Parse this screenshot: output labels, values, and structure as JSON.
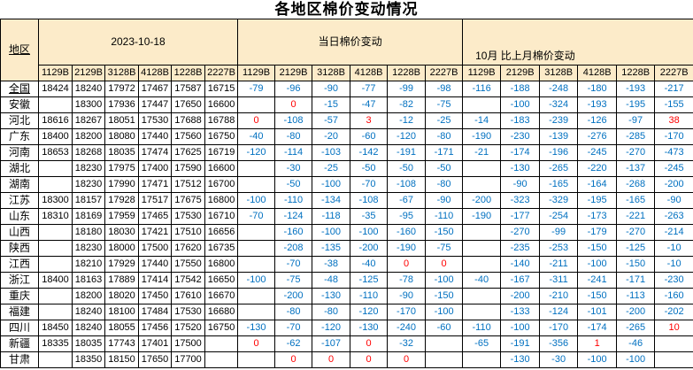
{
  "title": "各地区棉价变动情况",
  "colors": {
    "header_bg": "#FCEBC9",
    "negative_value": "#0070C0",
    "positive_value": "#FF0000",
    "border": "#000000"
  },
  "table": {
    "region_header": "地区",
    "group_headers": [
      "2023-10-18",
      "当日棉价变动",
      "10月 比上月棉价变动"
    ],
    "grade_headers": [
      "1129B",
      "2129B",
      "3128B",
      "4128B",
      "1228B",
      "2227B"
    ],
    "rows": [
      {
        "region": "全国",
        "underlined": true,
        "prices": [
          "18424",
          "18240",
          "17972",
          "17467",
          "17587",
          "16715"
        ],
        "daily": [
          "-79",
          "-96",
          "-90",
          "-77",
          "-99",
          "-98"
        ],
        "monthly": [
          "-116",
          "-188",
          "-248",
          "-180",
          "-193",
          "-217"
        ]
      },
      {
        "region": "安徽",
        "underlined": false,
        "prices": [
          "",
          "18300",
          "17936",
          "17447",
          "17650",
          "16600"
        ],
        "daily": [
          "",
          "0",
          "-15",
          "-47",
          "-82",
          "-75"
        ],
        "monthly": [
          "",
          "-100",
          "-324",
          "-193",
          "-195",
          "-155"
        ]
      },
      {
        "region": "河北",
        "underlined": false,
        "prices": [
          "18616",
          "18267",
          "18051",
          "17530",
          "17688",
          "16788"
        ],
        "daily": [
          "0",
          "-108",
          "-57",
          "3",
          "-12",
          "-25"
        ],
        "monthly": [
          "-14",
          "-183",
          "-239",
          "-126",
          "-97",
          "38"
        ]
      },
      {
        "region": "广东",
        "underlined": false,
        "prices": [
          "18400",
          "18200",
          "18080",
          "17440",
          "17560",
          "16750"
        ],
        "daily": [
          "-40",
          "-80",
          "-20",
          "-60",
          "-120",
          "-80"
        ],
        "monthly": [
          "-190",
          "-230",
          "-139",
          "-276",
          "-285",
          "-170"
        ]
      },
      {
        "region": "河南",
        "underlined": false,
        "prices": [
          "18653",
          "18268",
          "18035",
          "17474",
          "17625",
          "16719"
        ],
        "daily": [
          "-120",
          "-114",
          "-103",
          "-142",
          "-191",
          "-171"
        ],
        "monthly": [
          "-21",
          "-174",
          "-196",
          "-245",
          "-270",
          "-473"
        ]
      },
      {
        "region": "湖北",
        "underlined": false,
        "prices": [
          "",
          "18230",
          "17975",
          "17400",
          "17590",
          "16600"
        ],
        "daily": [
          "",
          "-30",
          "-25",
          "-50",
          "-50",
          "-50"
        ],
        "monthly": [
          "",
          "-130",
          "-265",
          "-220",
          "-137",
          "-245"
        ]
      },
      {
        "region": "湖南",
        "underlined": false,
        "prices": [
          "",
          "18230",
          "17990",
          "17471",
          "17512",
          "16700"
        ],
        "daily": [
          "",
          "-50",
          "-100",
          "-70",
          "-108",
          "-80"
        ],
        "monthly": [
          "",
          "-90",
          "-165",
          "-164",
          "-268",
          "-200"
        ]
      },
      {
        "region": "江苏",
        "underlined": false,
        "prices": [
          "18300",
          "18157",
          "17928",
          "17517",
          "17675",
          "16800"
        ],
        "daily": [
          "-100",
          "-110",
          "-134",
          "-108",
          "-67",
          "-90"
        ],
        "monthly": [
          "-200",
          "-323",
          "-329",
          "-195",
          "-165",
          "-90"
        ]
      },
      {
        "region": "山东",
        "underlined": false,
        "prices": [
          "18310",
          "18169",
          "17959",
          "17465",
          "17530",
          "16710"
        ],
        "daily": [
          "-70",
          "-124",
          "-118",
          "-35",
          "-95",
          "-110"
        ],
        "monthly": [
          "-190",
          "-177",
          "-254",
          "-173",
          "-221",
          "-263"
        ]
      },
      {
        "region": "山西",
        "underlined": false,
        "prices": [
          "",
          "18180",
          "18030",
          "17421",
          "17510",
          "16656"
        ],
        "daily": [
          "",
          "-160",
          "-100",
          "-100",
          "-160",
          "-150"
        ],
        "monthly": [
          "",
          "-270",
          "-99",
          "-179",
          "-270",
          "-214"
        ]
      },
      {
        "region": "陕西",
        "underlined": false,
        "prices": [
          "",
          "18230",
          "18000",
          "17500",
          "17620",
          "16735"
        ],
        "daily": [
          "",
          "-208",
          "-135",
          "-200",
          "-190",
          "-75"
        ],
        "monthly": [
          "",
          "-235",
          "-253",
          "-150",
          "-125",
          "-10"
        ]
      },
      {
        "region": "江西",
        "underlined": false,
        "prices": [
          "",
          "18210",
          "17929",
          "17440",
          "17550",
          "16800"
        ],
        "daily": [
          "",
          "-70",
          "-38",
          "-40",
          "0",
          "0"
        ],
        "monthly": [
          "",
          "-140",
          "-211",
          "-100",
          "-150",
          "-10"
        ]
      },
      {
        "region": "浙江",
        "underlined": false,
        "prices": [
          "18400",
          "18163",
          "17889",
          "17414",
          "17542",
          "16650"
        ],
        "daily": [
          "-100",
          "-75",
          "-48",
          "-125",
          "-78",
          "-100"
        ],
        "monthly": [
          "-40",
          "-167",
          "-311",
          "-241",
          "-171",
          "-230"
        ]
      },
      {
        "region": "重庆",
        "underlined": false,
        "prices": [
          "",
          "18200",
          "18020",
          "17450",
          "17610",
          "16670"
        ],
        "daily": [
          "",
          "-200",
          "-130",
          "-110",
          "-90",
          "-150"
        ],
        "monthly": [
          "",
          "-200",
          "-210",
          "-150",
          "-113",
          "-160"
        ]
      },
      {
        "region": "福建",
        "underlined": false,
        "prices": [
          "",
          "18240",
          "18100",
          "17484",
          "17530",
          "16680"
        ],
        "daily": [
          "",
          "-80",
          "-80",
          "-120",
          "-170",
          "-100"
        ],
        "monthly": [
          "",
          "-133",
          "-124",
          "-101",
          "-200",
          "-202"
        ]
      },
      {
        "region": "四川",
        "underlined": false,
        "prices": [
          "18450",
          "18240",
          "18055",
          "17456",
          "17520",
          "16750"
        ],
        "daily": [
          "-130",
          "-70",
          "-120",
          "-130",
          "-240",
          "-60"
        ],
        "monthly": [
          "-110",
          "-100",
          "-170",
          "-174",
          "-265",
          "10"
        ]
      },
      {
        "region": "新疆",
        "underlined": false,
        "prices": [
          "18335",
          "18035",
          "17743",
          "17401",
          "17500",
          ""
        ],
        "daily": [
          "0",
          "-62",
          "-107",
          "0",
          "-32",
          ""
        ],
        "monthly": [
          "-65",
          "-191",
          "-356",
          "1",
          "-46",
          ""
        ]
      },
      {
        "region": "甘肃",
        "underlined": false,
        "prices": [
          "",
          "18350",
          "18150",
          "17650",
          "17700",
          ""
        ],
        "daily": [
          "",
          "0",
          "0",
          "0",
          "0",
          ""
        ],
        "monthly": [
          "",
          "-130",
          "-30",
          "-100",
          "-100",
          ""
        ]
      }
    ]
  }
}
